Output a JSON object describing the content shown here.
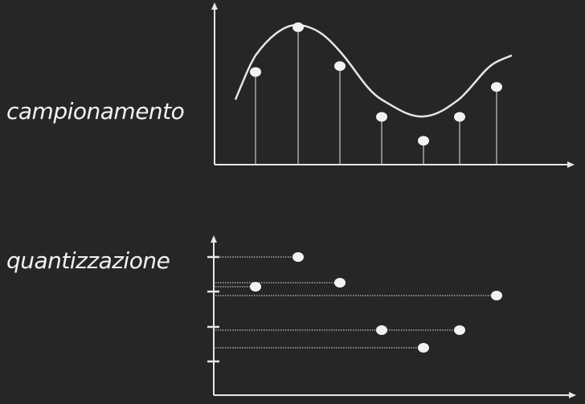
{
  "labels": {
    "sampling": "campionamento",
    "quantization": "quantizzazione"
  },
  "colors": {
    "background": "#262626",
    "foreground": "#f2f2f2",
    "line": "#e6e6e6"
  },
  "sampling_chart": {
    "samples": [
      {
        "x": 1,
        "y": 3.1
      },
      {
        "x": 2,
        "y": 4.6
      },
      {
        "x": 3,
        "y": 3.3
      },
      {
        "x": 4,
        "y": 1.6
      },
      {
        "x": 5,
        "y": 0.8
      },
      {
        "x": 6,
        "y": 1.6
      },
      {
        "x": 7,
        "y": 2.6
      }
    ]
  },
  "quantization_chart": {
    "levels": [
      1,
      2,
      3,
      4
    ],
    "points": [
      {
        "x": 2,
        "y": 4.0,
        "level": 4
      },
      {
        "x": 3,
        "y": 3.3,
        "level": 3
      },
      {
        "x": 1,
        "y": 3.1,
        "level": 3
      },
      {
        "x": 7,
        "y": 2.9,
        "level": 3
      },
      {
        "x": 4,
        "y": 1.9,
        "level": 2
      },
      {
        "x": 6,
        "y": 1.9,
        "level": 2
      },
      {
        "x": 5,
        "y": 1.4,
        "level": 1
      }
    ]
  }
}
